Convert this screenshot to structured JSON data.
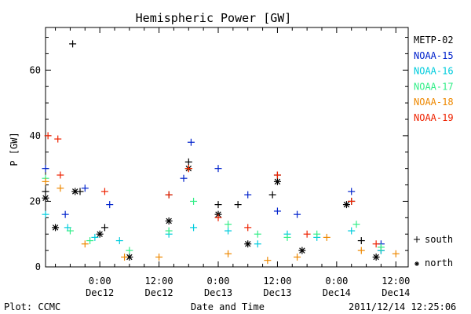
{
  "chart_data": {
    "type": "scatter",
    "title": "Hemispheric Power [GW]",
    "ylabel": "P [GW]",
    "xlabel": "Date and Time",
    "ylim": [
      0,
      73
    ],
    "xlim": [
      "2011-12-11T13:00",
      "2011-12-14T14:30"
    ],
    "yticks": [
      0,
      20,
      40,
      60
    ],
    "xticks": [
      {
        "t": "2011-12-12T00:00",
        "time": "0:00",
        "date": "Dec12"
      },
      {
        "t": "2011-12-12T12:00",
        "time": "12:00",
        "date": "Dec12"
      },
      {
        "t": "2011-12-13T00:00",
        "time": "0:00",
        "date": "Dec13"
      },
      {
        "t": "2011-12-13T12:00",
        "time": "12:00",
        "date": "Dec13"
      },
      {
        "t": "2011-12-14T00:00",
        "time": "0:00",
        "date": "Dec14"
      },
      {
        "t": "2011-12-14T12:00",
        "time": "12:00",
        "date": "Dec14"
      }
    ],
    "series": [
      {
        "name": "METP-02",
        "color": "#000000",
        "hemisphere": "south",
        "points": [
          [
            "2011-12-11T13:00",
            23
          ],
          [
            "2011-12-11T18:30",
            68
          ],
          [
            "2011-12-11T20:00",
            23
          ],
          [
            "2011-12-12T01:00",
            12
          ],
          [
            "2011-12-12T14:00",
            22
          ],
          [
            "2011-12-12T18:00",
            32
          ],
          [
            "2011-12-13T00:00",
            19
          ],
          [
            "2011-12-13T04:00",
            19
          ],
          [
            "2011-12-13T11:00",
            22
          ],
          [
            "2011-12-13T12:00",
            28
          ],
          [
            "2011-12-14T03:00",
            20
          ],
          [
            "2011-12-14T05:00",
            8
          ],
          [
            "2011-12-14T09:00",
            5
          ]
        ]
      },
      {
        "name": "METP-02",
        "color": "#000000",
        "hemisphere": "north",
        "points": [
          [
            "2011-12-11T13:00",
            21
          ],
          [
            "2011-12-11T15:00",
            12
          ],
          [
            "2011-12-11T19:00",
            23
          ],
          [
            "2011-12-12T00:00",
            10
          ],
          [
            "2011-12-12T06:00",
            3
          ],
          [
            "2011-12-12T14:00",
            14
          ],
          [
            "2011-12-12T18:00",
            30
          ],
          [
            "2011-12-13T00:00",
            16
          ],
          [
            "2011-12-13T06:00",
            7
          ],
          [
            "2011-12-13T12:00",
            26
          ],
          [
            "2011-12-13T17:00",
            5
          ],
          [
            "2011-12-14T02:00",
            19
          ],
          [
            "2011-12-14T08:00",
            3
          ]
        ]
      },
      {
        "name": "NOAA-15",
        "color": "#0022cc",
        "hemisphere": "south",
        "points": [
          [
            "2011-12-11T13:00",
            30
          ],
          [
            "2011-12-11T17:00",
            16
          ],
          [
            "2011-12-11T21:00",
            24
          ],
          [
            "2011-12-12T02:00",
            19
          ],
          [
            "2011-12-12T17:00",
            27
          ],
          [
            "2011-12-12T18:30",
            38
          ],
          [
            "2011-12-13T00:00",
            30
          ],
          [
            "2011-12-13T06:00",
            22
          ],
          [
            "2011-12-13T12:00",
            17
          ],
          [
            "2011-12-13T16:00",
            16
          ],
          [
            "2011-12-14T03:00",
            23
          ],
          [
            "2011-12-14T09:00",
            7
          ]
        ]
      },
      {
        "name": "NOAA-16",
        "color": "#00ccdd",
        "hemisphere": "south",
        "points": [
          [
            "2011-12-11T13:00",
            16
          ],
          [
            "2011-12-11T17:30",
            12
          ],
          [
            "2011-12-11T23:00",
            9
          ],
          [
            "2011-12-12T04:00",
            8
          ],
          [
            "2011-12-12T14:00",
            10
          ],
          [
            "2011-12-12T19:00",
            12
          ],
          [
            "2011-12-13T02:00",
            11
          ],
          [
            "2011-12-13T08:00",
            7
          ],
          [
            "2011-12-13T14:00",
            10
          ],
          [
            "2011-12-13T20:00",
            9
          ],
          [
            "2011-12-14T03:00",
            11
          ],
          [
            "2011-12-14T09:00",
            5
          ]
        ]
      },
      {
        "name": "NOAA-17",
        "color": "#33ee88",
        "hemisphere": "south",
        "points": [
          [
            "2011-12-11T13:00",
            27
          ],
          [
            "2011-12-11T18:00",
            11
          ],
          [
            "2011-12-11T22:00",
            8
          ],
          [
            "2011-12-12T06:00",
            5
          ],
          [
            "2011-12-12T14:00",
            11
          ],
          [
            "2011-12-12T19:00",
            20
          ],
          [
            "2011-12-13T02:00",
            13
          ],
          [
            "2011-12-13T08:00",
            10
          ],
          [
            "2011-12-13T14:00",
            9
          ],
          [
            "2011-12-13T20:00",
            10
          ],
          [
            "2011-12-14T04:00",
            13
          ],
          [
            "2011-12-14T09:00",
            6
          ]
        ]
      },
      {
        "name": "NOAA-18",
        "color": "#ee8800",
        "hemisphere": "south",
        "points": [
          [
            "2011-12-11T13:00",
            26
          ],
          [
            "2011-12-11T16:00",
            24
          ],
          [
            "2011-12-11T21:00",
            7
          ],
          [
            "2011-12-12T05:00",
            3
          ],
          [
            "2011-12-12T12:00",
            3
          ],
          [
            "2011-12-12T18:00",
            30
          ],
          [
            "2011-12-13T02:00",
            4
          ],
          [
            "2011-12-13T10:00",
            2
          ],
          [
            "2011-12-13T16:00",
            3
          ],
          [
            "2011-12-13T22:00",
            9
          ],
          [
            "2011-12-14T05:00",
            5
          ],
          [
            "2011-12-14T12:00",
            4
          ]
        ]
      },
      {
        "name": "NOAA-19",
        "color": "#ee2200",
        "hemisphere": "south",
        "points": [
          [
            "2011-12-11T13:30",
            40
          ],
          [
            "2011-12-11T15:30",
            39
          ],
          [
            "2011-12-11T16:00",
            28
          ],
          [
            "2011-12-12T01:00",
            23
          ],
          [
            "2011-12-12T14:00",
            22
          ],
          [
            "2011-12-12T18:00",
            30
          ],
          [
            "2011-12-13T00:00",
            15
          ],
          [
            "2011-12-13T06:00",
            12
          ],
          [
            "2011-12-13T12:00",
            28
          ],
          [
            "2011-12-13T18:00",
            10
          ],
          [
            "2011-12-14T03:00",
            20
          ],
          [
            "2011-12-14T08:00",
            7
          ]
        ]
      }
    ],
    "legend": {
      "placement": "right",
      "entries": [
        "METP-02",
        "NOAA-15",
        "NOAA-16",
        "NOAA-17",
        "NOAA-18",
        "NOAA-19"
      ]
    },
    "marker_legend": [
      {
        "symbol": "+",
        "label": "south"
      },
      {
        "symbol": "*",
        "label": "north"
      }
    ]
  },
  "footer": {
    "left": "Plot: CCMC",
    "right": "2011/12/14 12:25:06"
  }
}
